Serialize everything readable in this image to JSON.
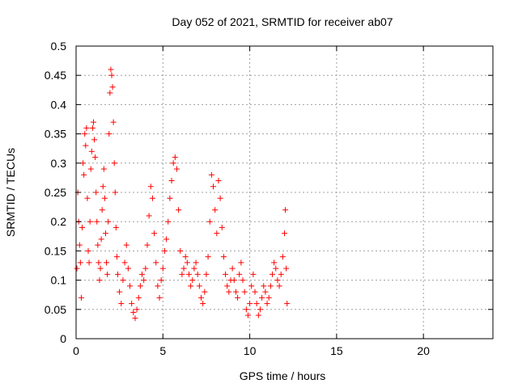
{
  "chart_data": {
    "type": "scatter",
    "title": "Day 052 of 2021, SRMTID for receiver ab07",
    "xlabel": "GPS time / hours",
    "ylabel": "SRMTID / TECUs",
    "xlim": [
      0,
      24
    ],
    "ylim": [
      0,
      0.5
    ],
    "xticks": [
      0,
      5,
      10,
      15,
      20
    ],
    "yticks": [
      0,
      0.05,
      0.1,
      0.15,
      0.2,
      0.25,
      0.3,
      0.35,
      0.4,
      0.45,
      0.5
    ],
    "ytick_labels": [
      "0",
      "0.05",
      "0.1",
      "0.15",
      "0.2",
      "0.25",
      "0.3",
      "0.35",
      "0.4",
      "0.45",
      "0.5"
    ],
    "grid": true,
    "marker": "plus",
    "color": "#ff0000",
    "series": [
      {
        "values": [
          [
            0.05,
            0.12
          ],
          [
            0.1,
            0.25
          ],
          [
            0.15,
            0.2
          ],
          [
            0.2,
            0.16
          ],
          [
            0.25,
            0.13
          ],
          [
            0.3,
            0.07
          ],
          [
            0.35,
            0.19
          ],
          [
            0.4,
            0.3
          ],
          [
            0.45,
            0.28
          ],
          [
            0.5,
            0.35
          ],
          [
            0.55,
            0.33
          ],
          [
            0.6,
            0.36
          ],
          [
            0.65,
            0.24
          ],
          [
            0.7,
            0.15
          ],
          [
            0.75,
            0.13
          ],
          [
            0.8,
            0.2
          ],
          [
            0.85,
            0.29
          ],
          [
            0.9,
            0.32
          ],
          [
            0.95,
            0.36
          ],
          [
            1.0,
            0.37
          ],
          [
            1.05,
            0.34
          ],
          [
            1.1,
            0.31
          ],
          [
            1.15,
            0.25
          ],
          [
            1.2,
            0.2
          ],
          [
            1.25,
            0.16
          ],
          [
            1.3,
            0.13
          ],
          [
            1.35,
            0.1
          ],
          [
            1.4,
            0.12
          ],
          [
            1.45,
            0.17
          ],
          [
            1.5,
            0.22
          ],
          [
            1.55,
            0.26
          ],
          [
            1.6,
            0.29
          ],
          [
            1.65,
            0.24
          ],
          [
            1.7,
            0.18
          ],
          [
            1.75,
            0.13
          ],
          [
            1.8,
            0.11
          ],
          [
            1.85,
            0.2
          ],
          [
            1.9,
            0.35
          ],
          [
            1.95,
            0.42
          ],
          [
            2.0,
            0.46
          ],
          [
            2.05,
            0.45
          ],
          [
            2.1,
            0.43
          ],
          [
            2.15,
            0.37
          ],
          [
            2.2,
            0.3
          ],
          [
            2.25,
            0.25
          ],
          [
            2.3,
            0.19
          ],
          [
            2.35,
            0.14
          ],
          [
            2.4,
            0.11
          ],
          [
            2.5,
            0.08
          ],
          [
            2.6,
            0.06
          ],
          [
            2.7,
            0.1
          ],
          [
            2.8,
            0.13
          ],
          [
            2.9,
            0.16
          ],
          [
            3.0,
            0.12
          ],
          [
            3.1,
            0.09
          ],
          [
            3.2,
            0.06
          ],
          [
            3.3,
            0.045
          ],
          [
            3.4,
            0.035
          ],
          [
            3.5,
            0.05
          ],
          [
            3.6,
            0.07
          ],
          [
            3.7,
            0.09
          ],
          [
            3.8,
            0.11
          ],
          [
            3.9,
            0.1
          ],
          [
            4.0,
            0.12
          ],
          [
            4.1,
            0.16
          ],
          [
            4.2,
            0.21
          ],
          [
            4.3,
            0.26
          ],
          [
            4.4,
            0.24
          ],
          [
            4.5,
            0.18
          ],
          [
            4.6,
            0.13
          ],
          [
            4.7,
            0.09
          ],
          [
            4.8,
            0.07
          ],
          [
            4.9,
            0.1
          ],
          [
            5.0,
            0.12
          ],
          [
            5.1,
            0.15
          ],
          [
            5.2,
            0.17
          ],
          [
            5.3,
            0.2
          ],
          [
            5.4,
            0.24
          ],
          [
            5.5,
            0.27
          ],
          [
            5.6,
            0.3
          ],
          [
            5.7,
            0.31
          ],
          [
            5.8,
            0.29
          ],
          [
            5.9,
            0.22
          ],
          [
            6.0,
            0.15
          ],
          [
            6.1,
            0.11
          ],
          [
            6.2,
            0.12
          ],
          [
            6.3,
            0.14
          ],
          [
            6.4,
            0.13
          ],
          [
            6.5,
            0.11
          ],
          [
            6.6,
            0.09
          ],
          [
            6.7,
            0.1
          ],
          [
            6.8,
            0.12
          ],
          [
            6.9,
            0.13
          ],
          [
            7.0,
            0.11
          ],
          [
            7.1,
            0.09
          ],
          [
            7.2,
            0.07
          ],
          [
            7.3,
            0.06
          ],
          [
            7.4,
            0.08
          ],
          [
            7.5,
            0.11
          ],
          [
            7.6,
            0.14
          ],
          [
            7.7,
            0.2
          ],
          [
            7.8,
            0.28
          ],
          [
            7.9,
            0.26
          ],
          [
            8.0,
            0.22
          ],
          [
            8.1,
            0.18
          ],
          [
            8.2,
            0.27
          ],
          [
            8.3,
            0.24
          ],
          [
            8.4,
            0.19
          ],
          [
            8.5,
            0.14
          ],
          [
            8.6,
            0.11
          ],
          [
            8.7,
            0.09
          ],
          [
            8.8,
            0.08
          ],
          [
            8.9,
            0.1
          ],
          [
            9.0,
            0.12
          ],
          [
            9.1,
            0.1
          ],
          [
            9.2,
            0.08
          ],
          [
            9.3,
            0.07
          ],
          [
            9.4,
            0.11
          ],
          [
            9.5,
            0.13
          ],
          [
            9.6,
            0.1
          ],
          [
            9.7,
            0.08
          ],
          [
            9.8,
            0.05
          ],
          [
            9.9,
            0.04
          ],
          [
            10.0,
            0.06
          ],
          [
            10.1,
            0.09
          ],
          [
            10.2,
            0.11
          ],
          [
            10.3,
            0.08
          ],
          [
            10.4,
            0.06
          ],
          [
            10.5,
            0.04
          ],
          [
            10.6,
            0.05
          ],
          [
            10.7,
            0.07
          ],
          [
            10.8,
            0.09
          ],
          [
            10.9,
            0.08
          ],
          [
            11.0,
            0.06
          ],
          [
            11.1,
            0.07
          ],
          [
            11.2,
            0.09
          ],
          [
            11.3,
            0.11
          ],
          [
            11.4,
            0.13
          ],
          [
            11.5,
            0.12
          ],
          [
            11.6,
            0.1
          ],
          [
            11.7,
            0.09
          ],
          [
            11.8,
            0.11
          ],
          [
            11.9,
            0.14
          ],
          [
            12.0,
            0.18
          ],
          [
            12.05,
            0.22
          ],
          [
            12.1,
            0.12
          ],
          [
            12.15,
            0.06
          ]
        ]
      }
    ]
  }
}
